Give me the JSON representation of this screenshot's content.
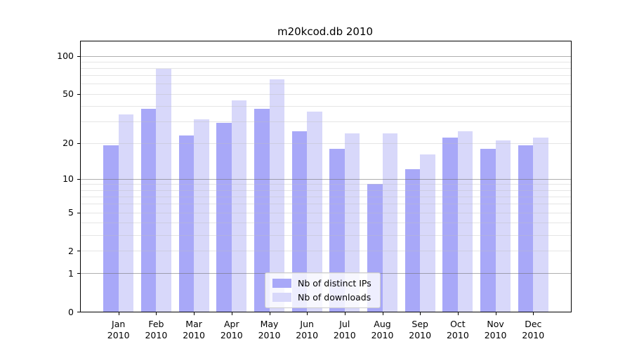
{
  "title": "m20kcod.db 2010",
  "chart_data": {
    "type": "bar",
    "title": "m20kcod.db 2010",
    "scale": "log10(1+v)",
    "categories": [
      "Jan",
      "Feb",
      "Mar",
      "Apr",
      "May",
      "Jun",
      "Jul",
      "Aug",
      "Sep",
      "Oct",
      "Nov",
      "Dec"
    ],
    "year": "2010",
    "series": [
      {
        "name": "Nb of distinct IPs",
        "color": "#a8a8f8",
        "values": [
          19,
          38,
          23,
          29,
          38,
          25,
          18,
          9,
          12,
          22,
          18,
          19
        ]
      },
      {
        "name": "Nb of downloads",
        "color": "#d8d8fa",
        "values": [
          34,
          79,
          31,
          44,
          65,
          36,
          24,
          24,
          16,
          25,
          21,
          22
        ]
      }
    ],
    "yticks": [
      100,
      50,
      20,
      10,
      5,
      2,
      1,
      0
    ],
    "major_gridlines": [
      1,
      10,
      100
    ],
    "minor_gridlines": [
      2,
      3,
      4,
      5,
      6,
      7,
      8,
      9,
      20,
      30,
      40,
      50,
      60,
      70,
      80,
      90
    ],
    "ymax": 130,
    "ylim": [
      0,
      130
    ],
    "grid": true,
    "legend_position": "lower center"
  }
}
